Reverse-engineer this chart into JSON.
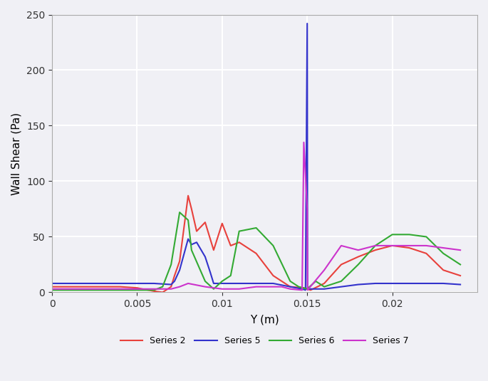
{
  "title": "",
  "xlabel": "Y (m)",
  "ylabel": "Wall Shear (Pa)",
  "xlim": [
    0,
    0.025
  ],
  "ylim": [
    0,
    250
  ],
  "yticks": [
    0,
    50,
    100,
    150,
    200,
    250
  ],
  "xticks": [
    0,
    0.005,
    0.01,
    0.015,
    0.02
  ],
  "legend_labels": [
    "Series 2",
    "Series 5",
    "Series 6",
    "Series 7"
  ],
  "colors": {
    "Series 2": "#e8413c",
    "Series 5": "#3333cc",
    "Series 6": "#33aa33",
    "Series 7": "#cc33cc"
  },
  "series2_x": [
    0.0,
    0.001,
    0.002,
    0.003,
    0.004,
    0.005,
    0.0053,
    0.006,
    0.0065,
    0.007,
    0.0072,
    0.0075,
    0.008,
    0.0082,
    0.0085,
    0.009,
    0.0095,
    0.01,
    0.0105,
    0.011,
    0.012,
    0.013,
    0.014,
    0.0148,
    0.015,
    0.0152,
    0.016,
    0.017,
    0.018,
    0.019,
    0.02,
    0.021,
    0.022,
    0.023,
    0.024
  ],
  "series2_y": [
    5,
    5,
    5,
    5,
    5,
    4,
    3,
    1,
    0,
    5,
    15,
    28,
    87,
    75,
    55,
    63,
    38,
    62,
    42,
    45,
    35,
    15,
    5,
    4,
    3,
    2,
    8,
    25,
    32,
    38,
    42,
    40,
    35,
    20,
    15
  ],
  "series5_x": [
    0.0,
    0.001,
    0.002,
    0.003,
    0.004,
    0.005,
    0.006,
    0.007,
    0.0072,
    0.0075,
    0.008,
    0.0082,
    0.0085,
    0.009,
    0.0093,
    0.0095,
    0.01,
    0.0105,
    0.011,
    0.012,
    0.013,
    0.014,
    0.0147,
    0.0149,
    0.015,
    0.01502,
    0.016,
    0.017,
    0.018,
    0.019,
    0.02,
    0.021,
    0.022,
    0.023,
    0.024
  ],
  "series5_y": [
    8,
    8,
    8,
    8,
    8,
    8,
    8,
    7,
    10,
    20,
    48,
    43,
    45,
    32,
    18,
    8,
    8,
    8,
    8,
    8,
    8,
    5,
    3,
    2,
    242,
    3,
    3,
    5,
    7,
    8,
    8,
    8,
    8,
    8,
    7
  ],
  "series6_x": [
    0.0,
    0.001,
    0.002,
    0.003,
    0.004,
    0.005,
    0.006,
    0.0065,
    0.007,
    0.0075,
    0.008,
    0.0082,
    0.009,
    0.0095,
    0.01,
    0.0105,
    0.011,
    0.012,
    0.013,
    0.014,
    0.0145,
    0.015,
    0.0155,
    0.016,
    0.017,
    0.018,
    0.019,
    0.02,
    0.021,
    0.022,
    0.023,
    0.024
  ],
  "series6_y": [
    2,
    2,
    2,
    2,
    2,
    2,
    2,
    5,
    25,
    72,
    65,
    38,
    10,
    3,
    10,
    15,
    55,
    58,
    42,
    10,
    5,
    3,
    10,
    5,
    10,
    25,
    42,
    52,
    52,
    50,
    35,
    25
  ],
  "series7_x": [
    0.0,
    0.001,
    0.002,
    0.003,
    0.004,
    0.005,
    0.006,
    0.0065,
    0.007,
    0.0075,
    0.008,
    0.009,
    0.01,
    0.011,
    0.012,
    0.013,
    0.0135,
    0.014,
    0.0147,
    0.0148,
    0.015,
    0.01502,
    0.016,
    0.017,
    0.018,
    0.019,
    0.02,
    0.021,
    0.022,
    0.023,
    0.024
  ],
  "series7_y": [
    3,
    3,
    3,
    3,
    3,
    3,
    3,
    3,
    3,
    5,
    8,
    5,
    3,
    3,
    5,
    5,
    5,
    3,
    2,
    135,
    75,
    2,
    20,
    42,
    38,
    42,
    42,
    42,
    42,
    40,
    38
  ],
  "background_color": "#f0f0f5",
  "grid_color": "#ffffff",
  "linewidth": 1.5
}
